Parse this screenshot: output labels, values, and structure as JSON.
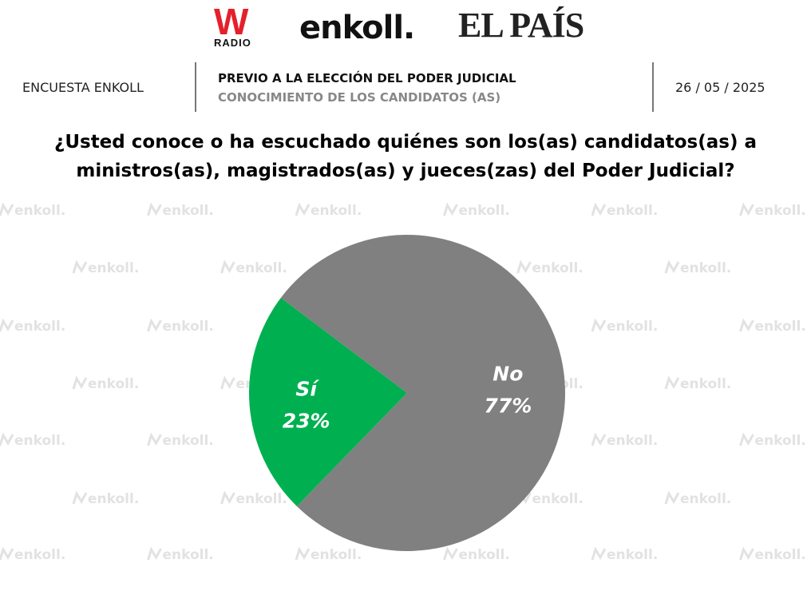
{
  "header": {
    "logos": {
      "wradio": "W",
      "wradio_sub": "RADIO",
      "enkoll": "enkoll.",
      "elpais": "EL PAÍS"
    },
    "survey": "ENCUESTA ENKOLL",
    "heading": "PREVIO A LA ELECCIÓN DEL PODER JUDICIAL",
    "subheading": "CONOCIMIENTO DE LOS CANDIDATOS (AS)",
    "date": "26 / 05 / 2025"
  },
  "watermark": "enkoll.",
  "chart_data": {
    "type": "pie",
    "title": "¿Usted conoce o ha escuchado quiénes son los(as) candidatos(as) a ministros(as), magistrados(as) y jueces(zas) del Poder Judicial?",
    "categories": [
      "Sí",
      "No"
    ],
    "values": [
      23,
      77
    ],
    "value_labels": [
      "23%",
      "77%"
    ],
    "colors": [
      "#00b050",
      "#808080"
    ]
  }
}
